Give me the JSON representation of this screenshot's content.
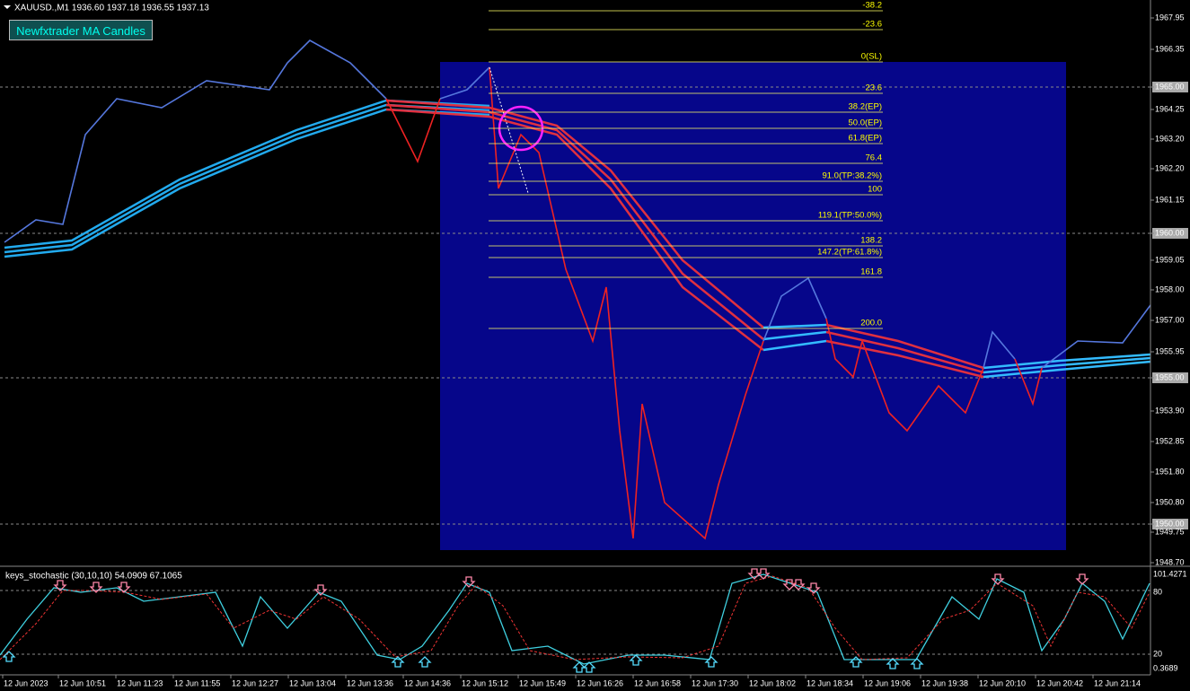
{
  "header": {
    "symbol_info": "XAUUSD.,M1  1936.60 1937.18 1936.55 1937.13",
    "button": "Newfxtrader MA Candles"
  },
  "price_axis": [
    "1967.95",
    "1966.35",
    "1965.00",
    "1964.25",
    "1963.20",
    "1962.20",
    "1961.15",
    "1960.00",
    "1959.05",
    "1958.00",
    "1957.00",
    "1955.95",
    "1955.00",
    "1953.90",
    "1952.85",
    "1951.80",
    "1950.80",
    "1950.00",
    "1949.75",
    "1948.70"
  ],
  "fib_levels": [
    "-38.2",
    "-23.6",
    "0(SL)",
    "23.6",
    "38.2(EP)",
    "50.0(EP)",
    "61.8(EP)",
    "76.4",
    "91.0(TP:38.2%)",
    "100",
    "119.1(TP:50.0%)",
    "138.2",
    "147.2(TP:61.8%)",
    "161.8",
    "200.0"
  ],
  "time_axis": [
    "12 Jun 2023",
    "12 Jun 10:51",
    "12 Jun 11:23",
    "12 Jun 11:55",
    "12 Jun 12:27",
    "12 Jun 13:04",
    "12 Jun 13:36",
    "12 Jun 14:36",
    "12 Jun 15:12",
    "12 Jun 15:49",
    "12 Jun 16:26",
    "12 Jun 16:58",
    "12 Jun 17:30",
    "12 Jun 18:02",
    "12 Jun 18:34",
    "12 Jun 19:06",
    "12 Jun 19:38",
    "12 Jun 20:10",
    "12 Jun 20:42",
    "12 Jun 21:14"
  ],
  "indicator": {
    "label": "keys_stochastic (30,10,10) 54.0909 67.1065",
    "axis": [
      "101.4271",
      "80",
      "20",
      "0.3689"
    ]
  }
}
